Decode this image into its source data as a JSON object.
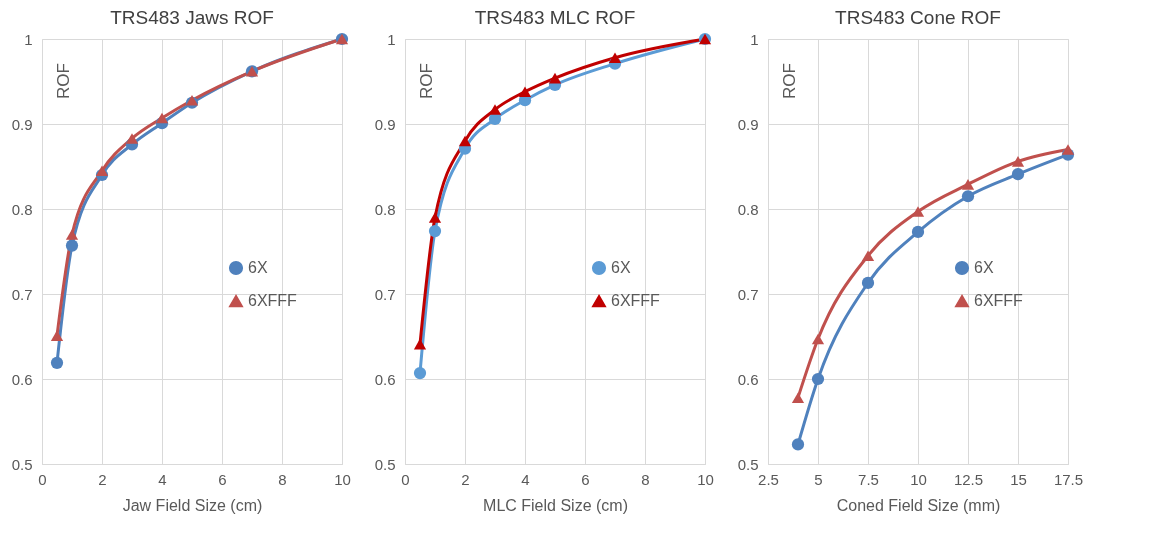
{
  "chart_data": [
    {
      "type": "line",
      "title": "TRS483 Jaws ROF",
      "xlabel": "Jaw Field Size (cm)",
      "ylabel": "ROF",
      "x": [
        0.5,
        1,
        2,
        3,
        4,
        5,
        7,
        10
      ],
      "xlim": [
        0,
        10
      ],
      "xticks": [
        0,
        2,
        4,
        6,
        8,
        10
      ],
      "ylim": [
        0.5,
        1
      ],
      "yticks": [
        0.5,
        0.6,
        0.7,
        0.8,
        0.9,
        1
      ],
      "grid": true,
      "legend": "right",
      "series": [
        {
          "name": "6X",
          "color": "#4f81bd",
          "marker": "circle",
          "values": [
            0.619,
            0.757,
            0.84,
            0.876,
            0.901,
            0.925,
            0.962,
            1.0
          ]
        },
        {
          "name": "6XFFF",
          "color": "#c0504d",
          "marker": "triangle",
          "values": [
            0.651,
            0.77,
            0.845,
            0.883,
            0.907,
            0.928,
            0.962,
            1.0
          ]
        }
      ]
    },
    {
      "type": "line",
      "title": "TRS483 MLC ROF",
      "xlabel": "MLC Field Size (cm)",
      "ylabel": "ROF",
      "x": [
        0.5,
        1,
        2,
        3,
        4,
        5,
        7,
        10
      ],
      "xlim": [
        0,
        10
      ],
      "xticks": [
        0,
        2,
        4,
        6,
        8,
        10
      ],
      "ylim": [
        0.5,
        1
      ],
      "yticks": [
        0.5,
        0.6,
        0.7,
        0.8,
        0.9,
        1
      ],
      "grid": true,
      "legend": "right",
      "series": [
        {
          "name": "6X",
          "color": "#5b9bd5",
          "marker": "circle",
          "values": [
            0.607,
            0.774,
            0.871,
            0.906,
            0.928,
            0.946,
            0.971,
            1.0
          ]
        },
        {
          "name": "6XFFF",
          "color": "#c00000",
          "marker": "triangle",
          "values": [
            0.641,
            0.79,
            0.88,
            0.917,
            0.938,
            0.954,
            0.978,
            1.0
          ]
        }
      ]
    },
    {
      "type": "line",
      "title": "TRS483 Cone ROF",
      "xlabel": "Coned Field Size (mm)",
      "ylabel": "ROF",
      "x": [
        4,
        5,
        7.5,
        10,
        12.5,
        15,
        17.5
      ],
      "xlim": [
        2.5,
        17.5
      ],
      "xticks": [
        2.5,
        5,
        7.5,
        10,
        12.5,
        15,
        17.5
      ],
      "ylim": [
        0.5,
        1
      ],
      "yticks": [
        0.5,
        0.6,
        0.7,
        0.8,
        0.9,
        1
      ],
      "grid": true,
      "legend": "right",
      "series": [
        {
          "name": "6X",
          "color": "#4f81bd",
          "marker": "circle",
          "values": [
            0.523,
            0.6,
            0.713,
            0.773,
            0.815,
            0.841,
            0.864
          ]
        },
        {
          "name": "6XFFF",
          "color": "#c0504d",
          "marker": "triangle",
          "values": [
            0.578,
            0.647,
            0.745,
            0.797,
            0.829,
            0.856,
            0.87
          ]
        }
      ]
    }
  ]
}
